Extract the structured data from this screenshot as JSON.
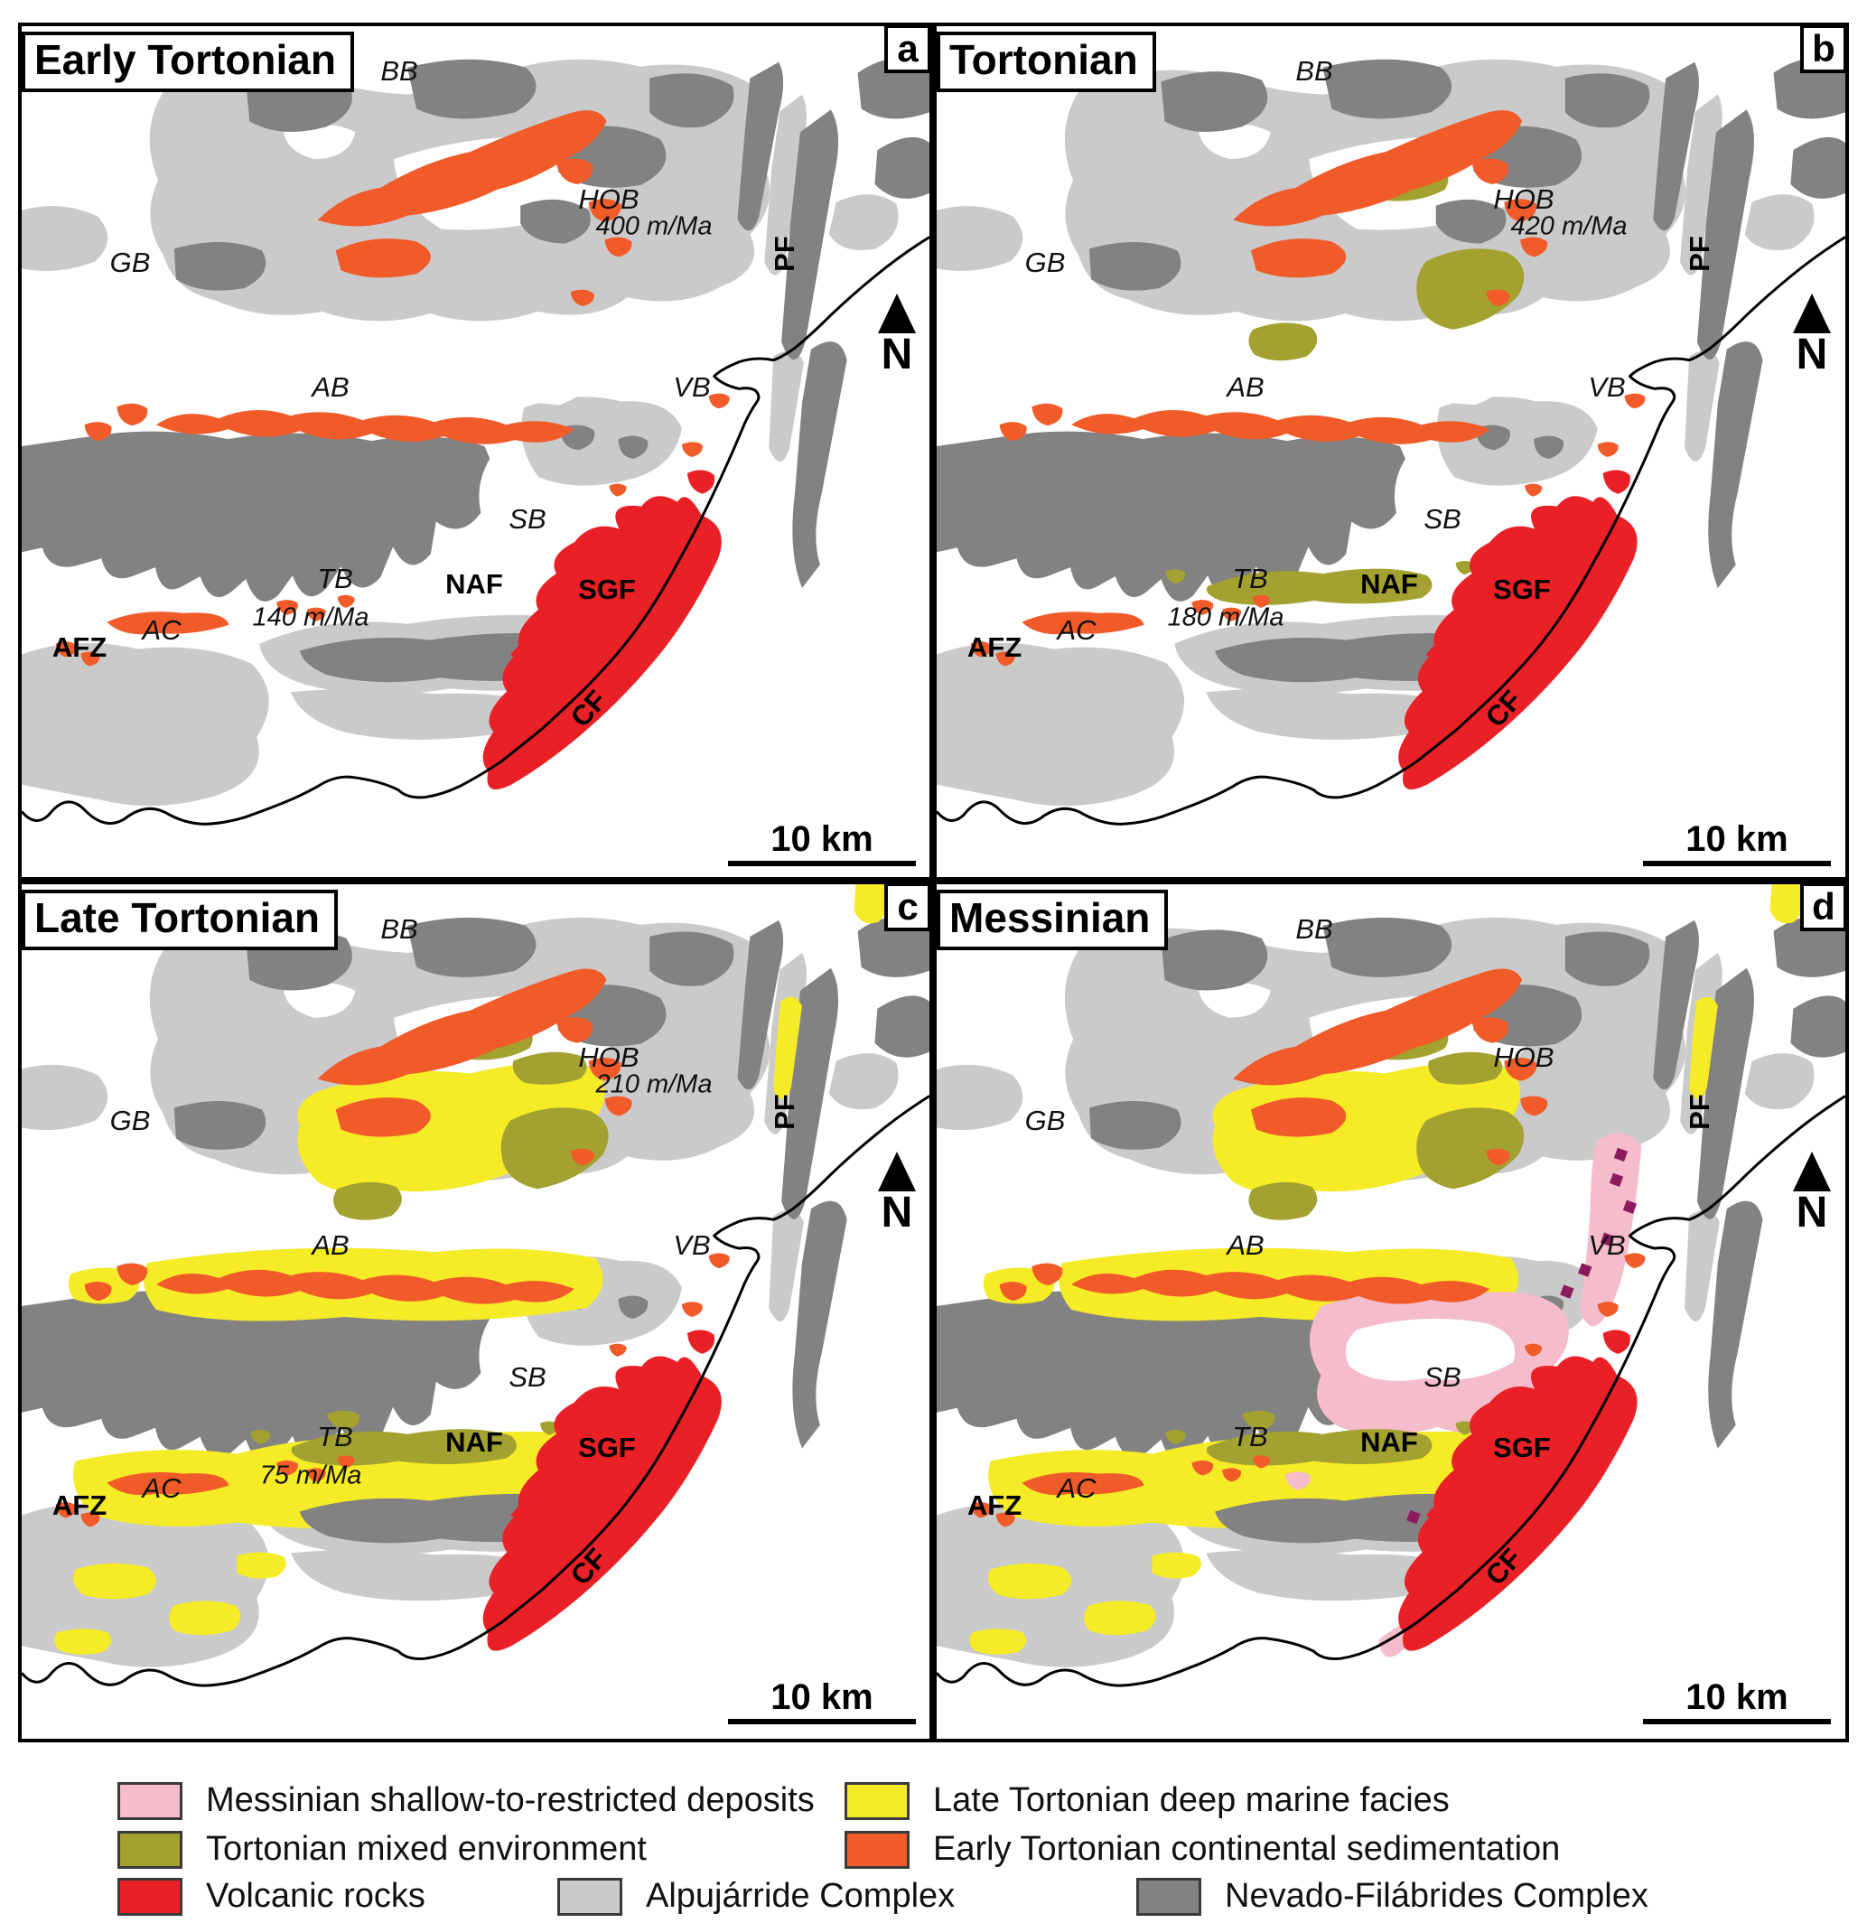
{
  "north_label": "N",
  "scale_label": "10 km",
  "colors": {
    "messinian_pink": "#F5BCCB",
    "tortonian_olive": "#A3A12F",
    "volcanic_red": "#E92127",
    "late_tortonian_yellow": "#F5EB27",
    "early_tortonian_orange": "#F15A29",
    "alpujarride_gray": "#CACACA",
    "nevado_gray": "#828282",
    "magenta_patch": "#8E1A5E",
    "coastline": "#000000"
  },
  "panels": [
    {
      "letter": "a",
      "title": "Early Tortonian",
      "rate_hob": "400 m/Ma",
      "rate_tb": "140 m/Ma",
      "labels": {
        "bb": "BB",
        "gb": "GB",
        "ab": "AB",
        "hob": "HOB",
        "pf": "PF",
        "vb": "VB",
        "sb": "SB",
        "tb": "TB",
        "naf": "NAF",
        "sgf": "SGF",
        "afz": "AFZ",
        "ac": "AC",
        "cf": "CF"
      }
    },
    {
      "letter": "b",
      "title": "Tortonian",
      "rate_hob": "420 m/Ma",
      "rate_tb": "180 m/Ma",
      "labels": {
        "bb": "BB",
        "gb": "GB",
        "ab": "AB",
        "hob": "HOB",
        "pf": "PF",
        "vb": "VB",
        "sb": "SB",
        "tb": "TB",
        "naf": "NAF",
        "sgf": "SGF",
        "afz": "AFZ",
        "ac": "AC",
        "cf": "CF"
      }
    },
    {
      "letter": "c",
      "title": "Late Tortonian",
      "rate_hob": "210 m/Ma",
      "rate_tb": "75 m/Ma",
      "labels": {
        "bb": "BB",
        "gb": "GB",
        "ab": "AB",
        "hob": "HOB",
        "pf": "PF",
        "vb": "VB",
        "sb": "SB",
        "tb": "TB",
        "naf": "NAF",
        "sgf": "SGF",
        "afz": "AFZ",
        "ac": "AC",
        "cf": "CF"
      }
    },
    {
      "letter": "d",
      "title": "Messinian",
      "rate_hob": "",
      "rate_tb": "",
      "labels": {
        "bb": "BB",
        "gb": "GB",
        "ab": "AB",
        "hob": "HOB",
        "pf": "PF",
        "vb": "VB",
        "sb": "SB",
        "tb": "TB",
        "naf": "NAF",
        "sgf": "SGF",
        "afz": "AFZ",
        "ac": "AC",
        "cf": "CF"
      }
    }
  ],
  "legend": {
    "items": [
      {
        "label": "Messinian shallow-to-restricted deposits",
        "color": "#F5BCCB"
      },
      {
        "label": "Late Tortonian deep marine facies",
        "color": "#F5EB27"
      },
      {
        "label": "Tortonian mixed environment",
        "color": "#A3A12F"
      },
      {
        "label": "Early Tortonian continental sedimentation",
        "color": "#F15A29"
      },
      {
        "label": "Volcanic rocks",
        "color": "#E92127"
      },
      {
        "label": "Alpujárride Complex",
        "color": "#CACACA"
      },
      {
        "label": "Nevado-Filábrides Complex",
        "color": "#828282"
      }
    ]
  }
}
